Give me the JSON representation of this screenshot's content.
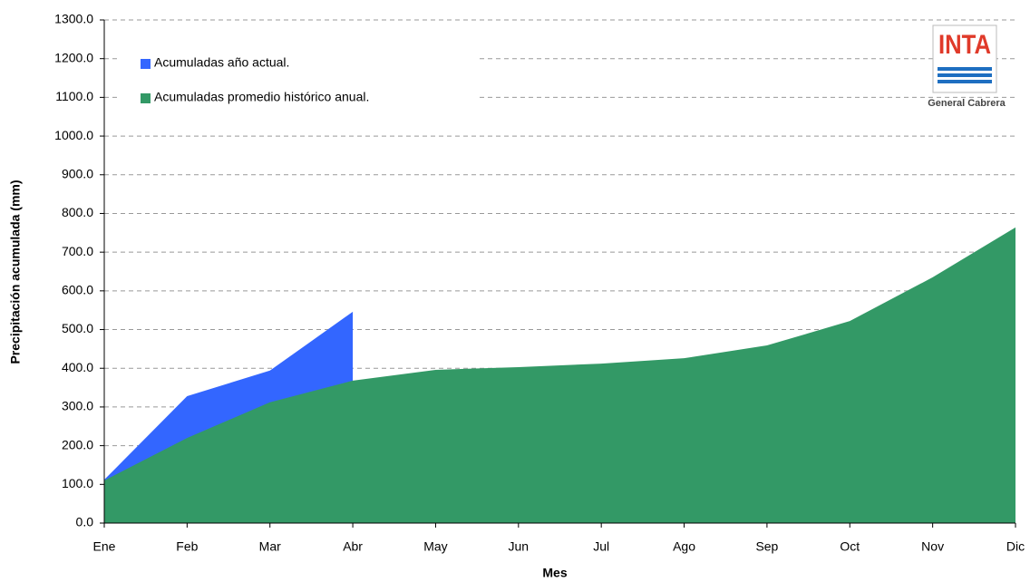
{
  "chart_data": {
    "type": "area",
    "x_label": "Mes",
    "y_label": "Precipitación acumulada (mm)",
    "categories": [
      "Ene",
      "Feb",
      "Mar",
      "Abr",
      "May",
      "Jun",
      "Jul",
      "Ago",
      "Sep",
      "Oct",
      "Nov",
      "Dic"
    ],
    "series": [
      {
        "name": "Acumuladas año actual.",
        "color": "#3366ff",
        "values": [
          112,
          328,
          394,
          546,
          null,
          null,
          null,
          null,
          null,
          null,
          null,
          null
        ]
      },
      {
        "name": "Acumuladas promedio histórico anual.",
        "color": "#339966",
        "values": [
          110,
          220,
          312,
          368,
          396,
          403,
          412,
          426,
          459,
          522,
          635,
          764
        ]
      }
    ],
    "ylim": [
      0,
      1300
    ],
    "yticks": [
      {
        "value": 0,
        "label": "0.0"
      },
      {
        "value": 100,
        "label": "100.0"
      },
      {
        "value": 200,
        "label": "200.0"
      },
      {
        "value": 300,
        "label": "300.0"
      },
      {
        "value": 400,
        "label": "400.0"
      },
      {
        "value": 500,
        "label": "500.0"
      },
      {
        "value": 600,
        "label": "600.0"
      },
      {
        "value": 700,
        "label": "700.0"
      },
      {
        "value": 800,
        "label": "800.0"
      },
      {
        "value": 900,
        "label": "900.0"
      },
      {
        "value": 1000,
        "label": "1000.0"
      },
      {
        "value": 1100,
        "label": "1100.0"
      },
      {
        "value": 1200,
        "label": "1200.0"
      },
      {
        "value": 1300,
        "label": "1300.0"
      }
    ],
    "grid": true,
    "legend": "upper left",
    "annotations": [
      "INTA",
      "General Cabrera"
    ]
  }
}
